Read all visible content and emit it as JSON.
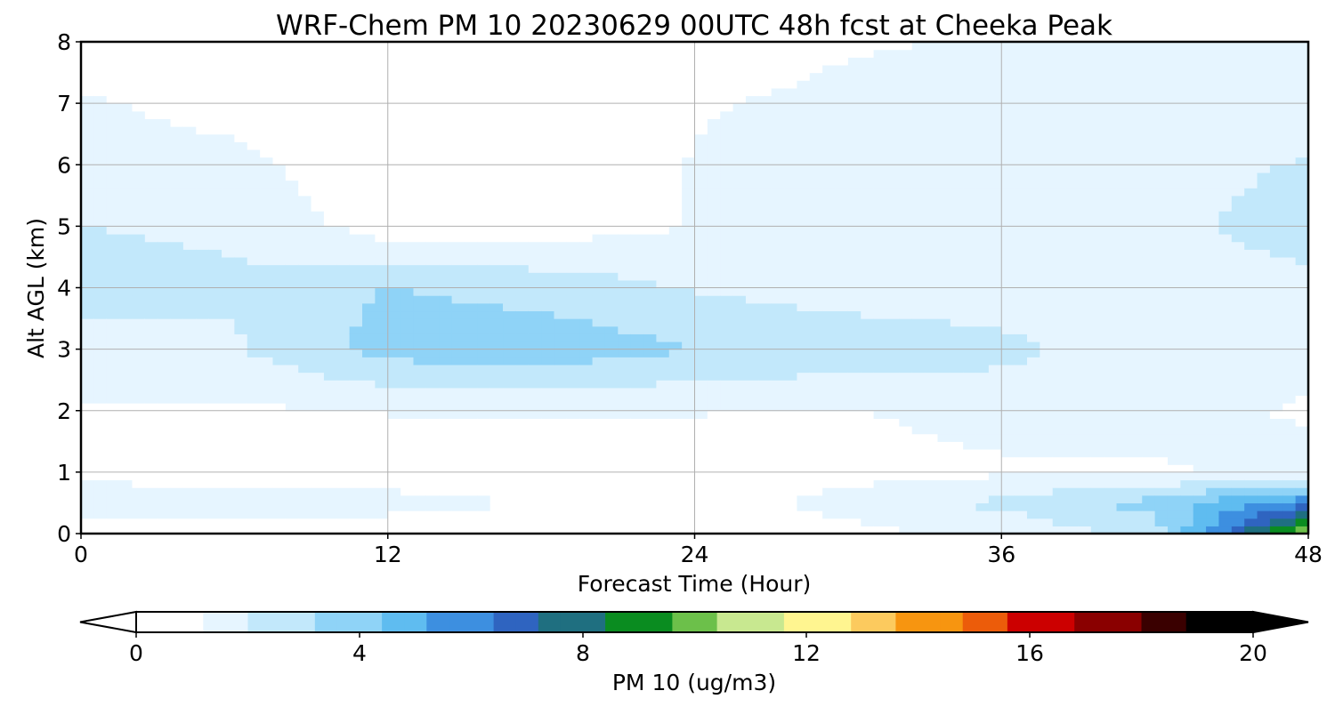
{
  "chart_data": {
    "type": "heatmap",
    "subtype": "time-height filled contour",
    "title": "WRF-Chem PM 10  20230629 00UTC 48h fcst at Cheeka Peak",
    "xlabel": "Forecast Time (Hour)",
    "ylabel": "Alt AGL (km)",
    "xlim": [
      0,
      48
    ],
    "ylim": [
      0,
      8
    ],
    "xticks": [
      "0",
      "12",
      "24",
      "36",
      "48"
    ],
    "yticks": [
      "0",
      "1",
      "2",
      "3",
      "4",
      "5",
      "6",
      "7",
      "8"
    ],
    "grid": true,
    "colorbar": {
      "label": "PM 10  (ug/m3)",
      "ticks": [
        "0",
        "4",
        "8",
        "12",
        "16",
        "20"
      ],
      "range": [
        0,
        20
      ],
      "extend": "both",
      "orientation": "horizontal",
      "colors": [
        "#ffffff",
        "#e6f5ff",
        "#c2e8fb",
        "#8fd3f7",
        "#5fbcf0",
        "#3d8fe0",
        "#2f64c0",
        "#1f6f80",
        "#0a8c20",
        "#6cc04a",
        "#c8e890",
        "#fff590",
        "#fcca5e",
        "#f79510",
        "#ec5c0a",
        "#cc0000",
        "#8a0000",
        "#3a0000",
        "#000000"
      ]
    },
    "times": [
      0,
      6,
      12,
      18,
      24,
      30,
      36,
      42,
      48
    ],
    "altitudes": [
      0,
      0.5,
      1,
      2,
      3,
      4,
      5,
      6,
      7,
      8
    ],
    "values": [
      [
        0.6,
        0.4,
        0.3,
        0.4,
        0.5,
        0.8,
        1.2,
        2.5,
        11.0
      ],
      [
        1.8,
        1.7,
        1.5,
        1.0,
        0.6,
        1.4,
        2.4,
        3.6,
        6.0
      ],
      [
        0.7,
        0.5,
        0.4,
        0.4,
        0.5,
        0.7,
        0.9,
        1.0,
        1.2
      ],
      [
        1.0,
        0.9,
        1.1,
        1.2,
        1.1,
        1.0,
        1.4,
        1.2,
        1.0
      ],
      [
        1.8,
        2.0,
        3.6,
        3.8,
        3.2,
        2.8,
        2.4,
        1.4,
        1.2
      ],
      [
        2.4,
        2.2,
        3.2,
        2.8,
        2.0,
        1.6,
        1.5,
        1.5,
        1.8
      ],
      [
        2.1,
        2.0,
        0.5,
        0.5,
        1.1,
        1.4,
        1.5,
        1.8,
        2.6
      ],
      [
        1.6,
        1.4,
        0.2,
        0.4,
        1.1,
        1.3,
        1.4,
        1.7,
        2.2
      ],
      [
        1.2,
        0.6,
        0.1,
        0.3,
        1.0,
        1.2,
        1.2,
        1.3,
        1.5
      ],
      [
        0.3,
        0.1,
        0.1,
        0.2,
        0.7,
        1.0,
        1.1,
        1.2,
        1.2
      ]
    ]
  }
}
